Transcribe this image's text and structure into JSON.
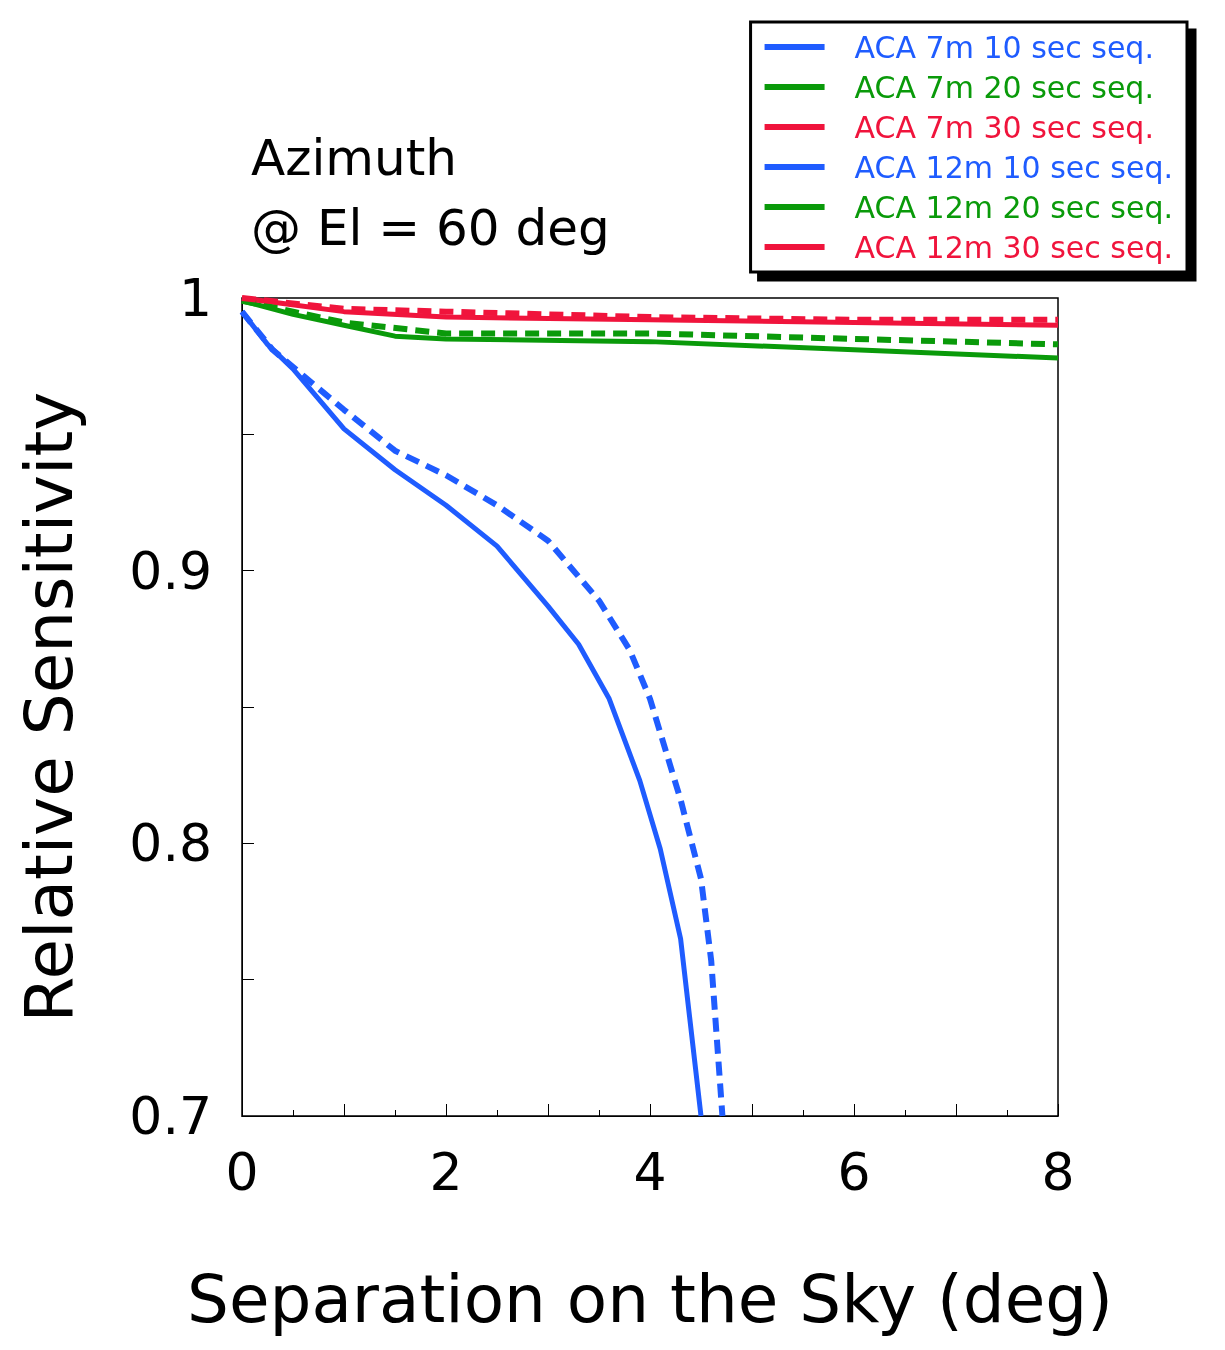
{
  "chart_data": {
    "type": "line",
    "title": "Azimuth",
    "subtitle": "@ El = 60 deg",
    "xlabel": "Separation on the Sky (deg)",
    "ylabel": "Relative Sensitivity",
    "xlim": [
      0,
      8
    ],
    "xticks": [
      0,
      {
        "value": 1,
        "label": null
      },
      2,
      {
        "value": 3,
        "label": null
      },
      4,
      {
        "value": 5,
        "label": null
      },
      6,
      {
        "value": 7,
        "label": null
      },
      8
    ],
    "ylim": [
      0.7,
      1
    ],
    "yticks": [
      0.7,
      {
        "value": 0.75,
        "label": null
      },
      0.8,
      {
        "value": 0.85,
        "label": null
      },
      0.9,
      {
        "value": 0.95,
        "label": null
      },
      1
    ],
    "grid": false,
    "legend": "top right",
    "marker": "none",
    "series": [
      {
        "name": "ACA 7m 10 sec seq.",
        "color": "#1f5cff",
        "line_style": "solid",
        "x": [
          0,
          0.25,
          0.5,
          1,
          1.5,
          2,
          2.5,
          3,
          3.3,
          3.6,
          3.9,
          4.1,
          4.3,
          4.5
        ],
        "values": [
          0.995,
          0.983,
          0.974,
          0.952,
          0.937,
          0.924,
          0.909,
          0.887,
          0.873,
          0.853,
          0.823,
          0.798,
          0.765,
          0.7
        ]
      },
      {
        "name": "ACA 7m 20 sec seq.",
        "color": "#0a9a0a",
        "line_style": "solid",
        "x": [
          0,
          0.5,
          1,
          1.5,
          2,
          4,
          6,
          8
        ],
        "values": [
          0.999,
          0.994,
          0.99,
          0.986,
          0.985,
          0.984,
          0.981,
          0.978
        ]
      },
      {
        "name": "ACA 7m 30 sec seq.",
        "color": "#f0143c",
        "line_style": "solid",
        "x": [
          0,
          1,
          2,
          4,
          6,
          8
        ],
        "values": [
          1,
          0.995,
          0.993,
          0.992,
          0.991,
          0.99
        ]
      },
      {
        "name": "ACA 12m 10 sec seq.",
        "color": "#1f5cff",
        "line_style": "dashed",
        "x": [
          0,
          0.3,
          1,
          1.5,
          2,
          2.5,
          3,
          3.5,
          3.8,
          4,
          4.3,
          4.5,
          4.6,
          4.71
        ],
        "values": [
          0.995,
          0.981,
          0.959,
          0.944,
          0.935,
          0.924,
          0.911,
          0.889,
          0.871,
          0.853,
          0.816,
          0.787,
          0.757,
          0.7
        ]
      },
      {
        "name": "ACA 12m 20 sec seq.",
        "color": "#0a9a0a",
        "line_style": "dashed",
        "x": [
          0,
          1,
          2,
          4,
          6,
          8
        ],
        "values": [
          0.999,
          0.991,
          0.987,
          0.987,
          0.985,
          0.983
        ]
      },
      {
        "name": "ACA 12m 30 sec seq.",
        "color": "#f0143c",
        "line_style": "dashed",
        "x": [
          0,
          1,
          2,
          4,
          6,
          8
        ],
        "values": [
          1,
          0.996,
          0.995,
          0.993,
          0.992,
          0.992
        ]
      }
    ]
  }
}
